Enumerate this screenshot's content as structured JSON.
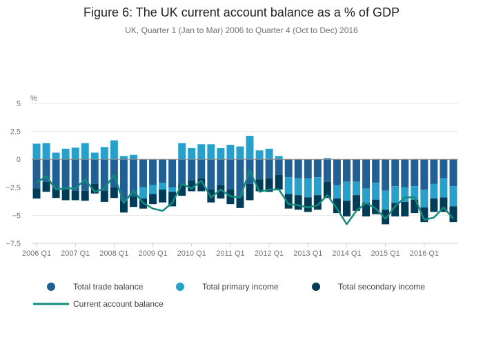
{
  "chart_data": {
    "type": "bar",
    "title": "Figure 6: The UK current account balance as a % of GDP",
    "subtitle": "UK, Quarter 1 (Jan to Mar) 2006 to Quarter 4 (Oct to Dec) 2016",
    "ylabel": "%",
    "xlabel": "",
    "ylim": [
      -7.5,
      5
    ],
    "yticks": [
      5,
      2.5,
      0,
      -2.5,
      -5,
      -7.5
    ],
    "ytick_labels": [
      "5",
      "2.5",
      "0",
      "−2.5",
      "−5",
      "−7.5"
    ],
    "xtick_labels": [
      "2006 Q1",
      "2007 Q1",
      "2008 Q1",
      "2009 Q1",
      "2010 Q1",
      "2011 Q1",
      "2012 Q1",
      "2013 Q1",
      "2014 Q1",
      "2015 Q1",
      "2016 Q1"
    ],
    "stacked": true,
    "colors": {
      "trade": "#206095",
      "primary": "#27a0cc",
      "secondary": "#003c57",
      "line": "#118c7b",
      "grid": "#e6e6e6",
      "axis": "#cccccc"
    },
    "series": [
      {
        "name": "Total trade balance",
        "type": "bar",
        "values": [
          -2.6,
          -2.0,
          -2.6,
          -2.7,
          -2.8,
          -2.8,
          -2.2,
          -2.8,
          -2.5,
          -3.7,
          -3.3,
          -2.5,
          -2.3,
          -2.1,
          -2.5,
          -2.3,
          -1.9,
          -1.7,
          -2.7,
          -2.3,
          -2.7,
          -3.3,
          -2.2,
          -1.8,
          -1.7,
          -1.4,
          -1.6,
          -1.7,
          -1.7,
          -1.6,
          -2.0,
          -2.3,
          -2.0,
          -2.0,
          -2.6,
          -2.1,
          -2.8,
          -2.4,
          -2.5,
          -2.4,
          -2.7,
          -2.2,
          -1.7,
          -2.4
        ]
      },
      {
        "name": "Total primary income",
        "type": "bar",
        "values": [
          1.4,
          1.45,
          0.6,
          0.95,
          1.05,
          1.45,
          0.6,
          1.1,
          1.7,
          0.3,
          0.4,
          -1.0,
          -0.8,
          -0.6,
          -0.4,
          1.45,
          1.0,
          1.35,
          1.35,
          1.0,
          1.3,
          1.15,
          2.1,
          0.8,
          0.95,
          0.3,
          -1.5,
          -1.5,
          -1.7,
          -1.6,
          0.12,
          -1.2,
          -1.7,
          -1.2,
          -1.3,
          -1.5,
          -1.7,
          -1.5,
          -1.3,
          -1.2,
          -1.6,
          -1.3,
          -1.7,
          -1.8
        ]
      },
      {
        "name": "Total secondary income",
        "type": "bar",
        "values": [
          -0.9,
          -0.9,
          -0.85,
          -0.95,
          -0.85,
          -0.9,
          -0.85,
          -1.0,
          -0.95,
          -1.05,
          -0.95,
          -0.9,
          -0.9,
          -1.15,
          -1.3,
          -0.95,
          -0.95,
          -1.15,
          -1.15,
          -1.2,
          -1.3,
          -1.05,
          -1.45,
          -1.05,
          -1.2,
          -1.3,
          -1.3,
          -1.3,
          -1.3,
          -1.3,
          -1.45,
          -1.3,
          -1.4,
          -1.4,
          -1.2,
          -1.3,
          -1.3,
          -1.2,
          -1.3,
          -1.2,
          -1.3,
          -1.2,
          -1.3,
          -1.4
        ]
      },
      {
        "name": "Current account balance",
        "type": "line",
        "values": [
          -2.1,
          -1.5,
          -2.7,
          -2.6,
          -2.6,
          -1.8,
          -2.9,
          -2.6,
          -1.4,
          -3.9,
          -2.8,
          -3.9,
          -4.4,
          -4.6,
          -3.9,
          -2.2,
          -2.6,
          -1.9,
          -3.4,
          -2.7,
          -3.3,
          -3.4,
          -1.0,
          -2.9,
          -2.7,
          -2.7,
          -4.0,
          -4.1,
          -4.3,
          -4.1,
          -3.2,
          -4.4,
          -5.8,
          -4.6,
          -3.9,
          -4.4,
          -5.3,
          -4.2,
          -3.4,
          -3.4,
          -5.4,
          -5.2,
          -4.3,
          -5.3
        ]
      }
    ],
    "legend": [
      "Total trade balance",
      "Total primary income",
      "Total secondary income",
      "Current account balance"
    ],
    "legend_position": "bottom"
  }
}
